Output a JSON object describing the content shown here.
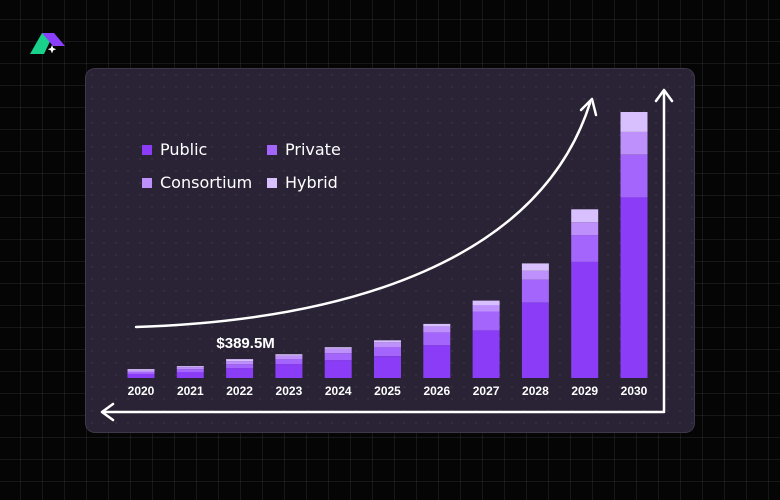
{
  "chart_data": {
    "type": "bar",
    "stacked": true,
    "categories": [
      "2020",
      "2021",
      "2022",
      "2023",
      "2024",
      "2025",
      "2026",
      "2027",
      "2028",
      "2029",
      "2030"
    ],
    "series": [
      {
        "name": "Public",
        "color": "#8b3cf6",
        "values": [
          4,
          6,
          10,
          14,
          18,
          22,
          33,
          48,
          76,
          117,
          182
        ]
      },
      {
        "name": "Private",
        "color": "#a365fb",
        "values": [
          2,
          3,
          4,
          5,
          7,
          9,
          13,
          19,
          23,
          27,
          43
        ]
      },
      {
        "name": "Consortium",
        "color": "#be90fc",
        "values": [
          1.5,
          2,
          3,
          3.5,
          4.5,
          5,
          6,
          6.5,
          9,
          13,
          23
        ]
      },
      {
        "name": "Hybrid",
        "color": "#d8bffd",
        "values": [
          1.5,
          1,
          2,
          1.5,
          1.5,
          2,
          2.5,
          4.5,
          7.5,
          13,
          20
        ]
      }
    ],
    "annotations": [
      {
        "category": "2022",
        "text": "$389.5M"
      }
    ],
    "ylim": [
      0,
      270
    ],
    "legend": "top-left",
    "grid": false
  },
  "axis_color": "#ffffff",
  "trend_color": "#ffffff",
  "logo": {
    "name": "brand-logo-icon",
    "colors": [
      "#19d18b",
      "#8a3ffc"
    ]
  }
}
